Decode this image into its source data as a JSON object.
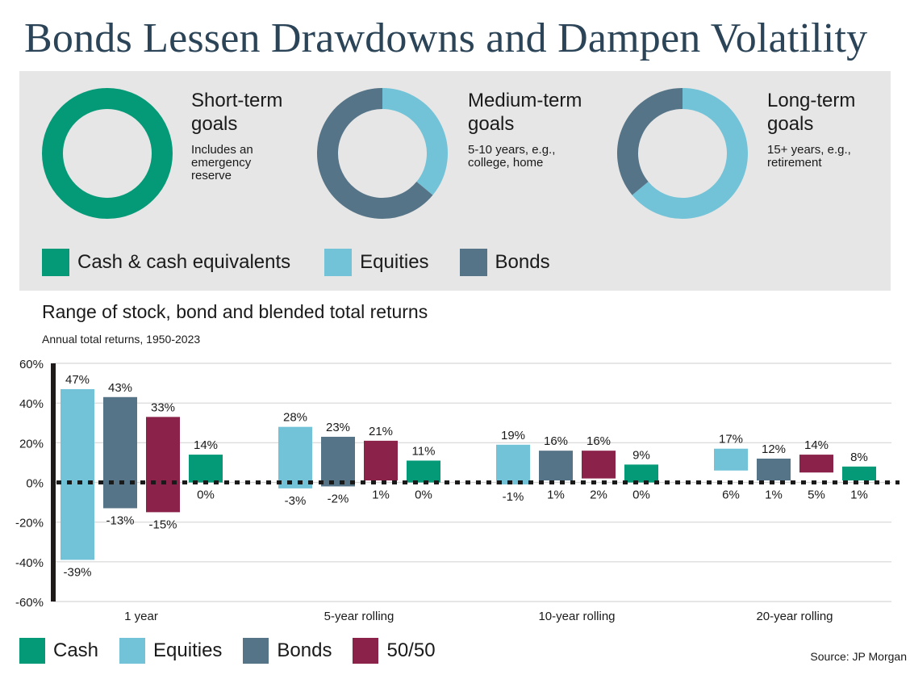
{
  "title": "Bonds Lessen Drawdowns and Dampen Volatility",
  "colors": {
    "cash": "#049a77",
    "equities": "#72c3d7",
    "bonds": "#567487",
    "blend": "#8a2249",
    "title": "#2b4457",
    "panel": "#e6e6e6"
  },
  "goals": [
    {
      "heading": "Short-term\ngoals",
      "description": "Includes an\nemergency\nreserve",
      "allocation": [
        {
          "asset": "cash",
          "share": 1.0
        }
      ]
    },
    {
      "heading": "Medium-term\ngoals",
      "description": "5-10 years, e.g.,\ncollege, home",
      "allocation": [
        {
          "asset": "equities",
          "share": 0.36
        },
        {
          "asset": "bonds",
          "share": 0.64
        }
      ]
    },
    {
      "heading": "Long-term\ngoals",
      "description": "15+ years, e.g.,\nretirement",
      "allocation": [
        {
          "asset": "equities",
          "share": 0.64
        },
        {
          "asset": "bonds",
          "share": 0.36
        }
      ]
    }
  ],
  "top_legend": [
    {
      "key": "cash",
      "label": "Cash & cash equivalents"
    },
    {
      "key": "equities",
      "label": "Equities"
    },
    {
      "key": "bonds",
      "label": "Bonds"
    }
  ],
  "chart_title": "Range of stock, bond and blended total returns",
  "chart_subtitle": "Annual total returns, 1950-2023",
  "bottom_legend": [
    {
      "key": "cash",
      "label": "Cash"
    },
    {
      "key": "equities",
      "label": "Equities"
    },
    {
      "key": "bonds",
      "label": "Bonds"
    },
    {
      "key": "blend",
      "label": "50/50"
    }
  ],
  "source": "Source: JP Morgan",
  "chart_data": {
    "type": "bar",
    "subtype": "floating-range",
    "title": "Range of stock, bond and blended total returns",
    "subtitle": "Annual total returns, 1950-2023",
    "xlabel": "",
    "ylabel": "",
    "ylim": [
      -60,
      60
    ],
    "yticks": [
      60,
      40,
      20,
      0,
      -20,
      -40,
      -60
    ],
    "ytick_labels": [
      "60%",
      "40%",
      "20%",
      "0%",
      "-20%",
      "-40%",
      "-60%"
    ],
    "grid": true,
    "legend_position": "bottom-left",
    "categories": [
      "1 year",
      "5-year rolling",
      "10-year rolling",
      "20-year rolling"
    ],
    "series": [
      {
        "name": "Equities",
        "key": "equities",
        "high": [
          47,
          28,
          19,
          17
        ],
        "low": [
          -39,
          -3,
          -1,
          6
        ]
      },
      {
        "name": "Bonds",
        "key": "bonds",
        "high": [
          43,
          23,
          16,
          12
        ],
        "low": [
          -13,
          -2,
          1,
          1
        ]
      },
      {
        "name": "50/50",
        "key": "blend",
        "high": [
          33,
          21,
          16,
          14
        ],
        "low": [
          -15,
          1,
          2,
          5
        ]
      },
      {
        "name": "Cash",
        "key": "cash",
        "high": [
          14,
          11,
          9,
          8
        ],
        "low": [
          0,
          0,
          0,
          1
        ]
      }
    ]
  }
}
